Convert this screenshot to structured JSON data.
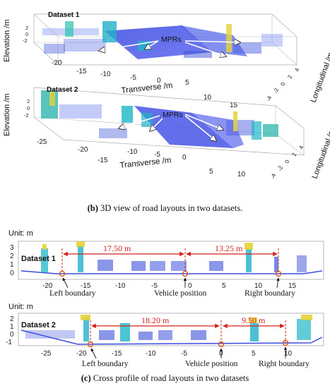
{
  "panel_b": {
    "plots": [
      {
        "dataset_label": "Dataset 1",
        "elevation_label": "Elevation /m",
        "transverse_label": "Transverse /m",
        "longitudinal_label": "Longitudinal /m",
        "mpr_label": "MPRs",
        "transverse_ticks": [
          "-20",
          "-15",
          "-10",
          "-5",
          "0",
          "5",
          "10",
          "15"
        ],
        "longitudinal_ticks": [
          "4",
          "2",
          "0",
          "-2",
          "-4"
        ],
        "elevation_ticks": [
          "2",
          "0",
          "-2"
        ]
      },
      {
        "dataset_label": "Dataset 2",
        "elevation_label": "Elevation /m",
        "transverse_label": "Transverse /m",
        "longitudinal_label": "Longitudinal /m",
        "mpr_label": "MPRs",
        "transverse_ticks": [
          "-25",
          "-20",
          "-15",
          "-10",
          "-5",
          "0",
          "5",
          "10"
        ],
        "longitudinal_ticks": [
          "4",
          "2",
          "0",
          "-2",
          "-4"
        ],
        "elevation_ticks": [
          "2",
          "0",
          "-2"
        ]
      }
    ],
    "caption_letter": "(b)",
    "caption_text": "3D view of road layouts in two datasets."
  },
  "panel_c": {
    "profiles": [
      {
        "unit_label": "Unit: m",
        "dataset_label": "Dataset 1",
        "y_ticks": [
          "3",
          "2",
          "1",
          "0"
        ],
        "x_ticks": [
          "-20",
          "-15",
          "-10",
          "-5",
          "0",
          "5",
          "10",
          "15"
        ],
        "distance_left": "17.50 m",
        "distance_right": "13.25 m",
        "left_label": "Left boundary",
        "vehicle_label": "Vehicle position",
        "right_label": "Right boundary"
      },
      {
        "unit_label": "Unit: m",
        "dataset_label": "Dataset 2",
        "y_ticks": [
          "2",
          "1",
          "0",
          "-1"
        ],
        "x_ticks": [
          "-25",
          "-20",
          "-15",
          "-10",
          "-5",
          "0",
          "5",
          "10"
        ],
        "distance_left": "18.20 m",
        "distance_right": "9.50 m",
        "left_label": "Left boundary",
        "vehicle_label": "Vehicle position",
        "right_label": "Right boundary"
      }
    ],
    "caption_letter": "(c)",
    "caption_text": "Cross profile of road layouts in two datasets"
  },
  "colors": {
    "points_blue": "#2a3fd6",
    "points_cyan": "#1fb6c8",
    "points_yellow": "#e6d23a",
    "arrow_red": "#d42020",
    "marker_orange": "#e05a1a"
  }
}
